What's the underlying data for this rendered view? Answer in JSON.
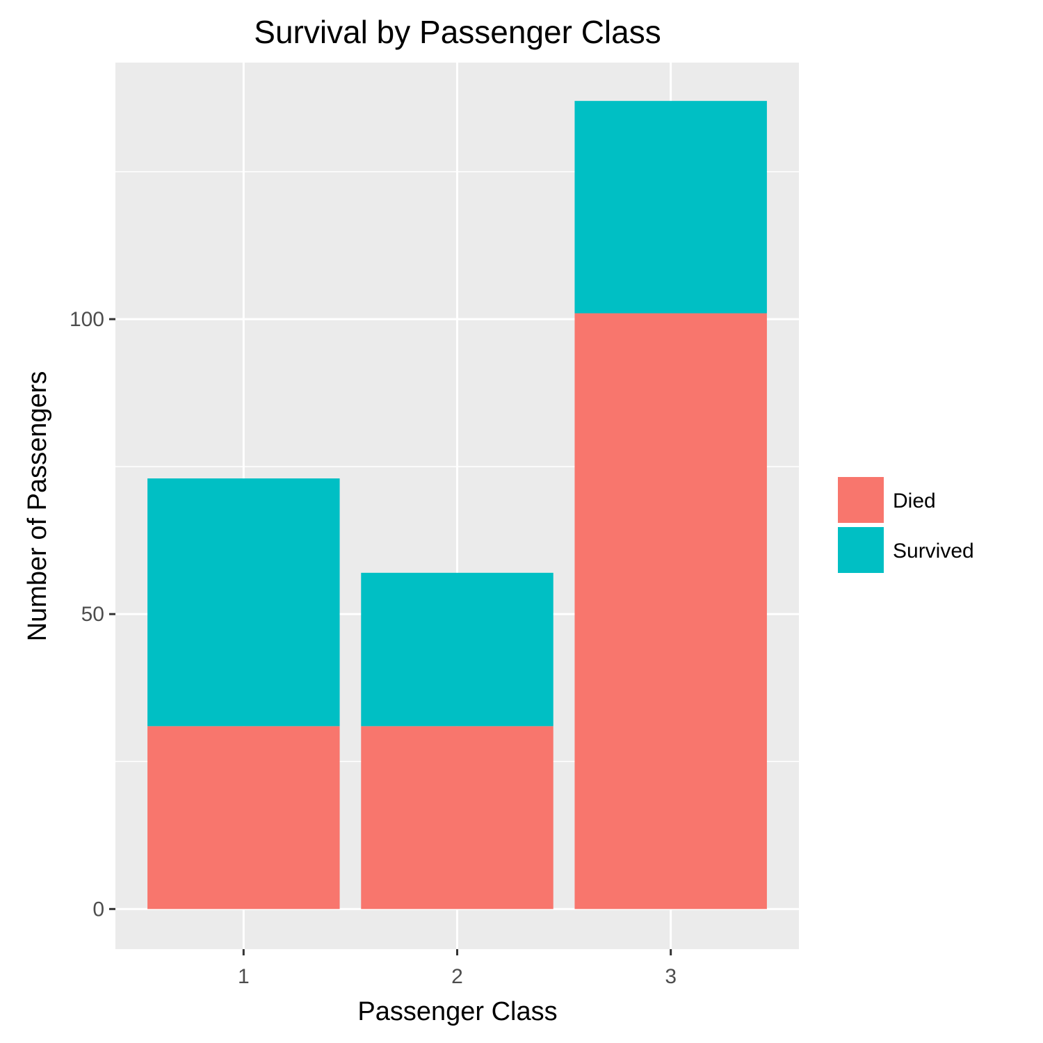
{
  "chart_data": {
    "type": "bar",
    "stacked": true,
    "title": "Survival by Passenger Class",
    "xlabel": "Passenger Class",
    "ylabel": "Number of Passengers",
    "categories": [
      "1",
      "2",
      "3"
    ],
    "series": [
      {
        "name": "Died",
        "values": [
          31,
          31,
          101
        ],
        "color": "#F8766D"
      },
      {
        "name": "Survived",
        "values": [
          42,
          26,
          36
        ],
        "color": "#00BFC4"
      }
    ],
    "yticks": [
      0,
      50,
      100
    ],
    "ylim": [
      -6.8,
      143.5
    ],
    "grid": true,
    "legend_position": "right",
    "panel_color": "#EBEBEB",
    "grid_color": "#FFFFFF"
  }
}
